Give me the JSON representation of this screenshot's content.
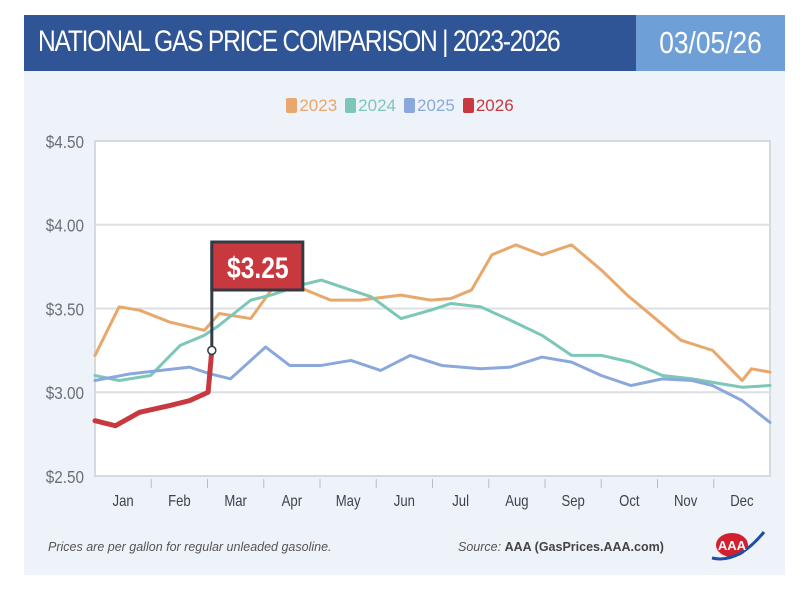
{
  "header": {
    "title": "NATIONAL GAS PRICE COMPARISON | 2023-2026",
    "date": "03/05/26",
    "colors": {
      "bar": "#2f5597",
      "date_box": "#6e9fd6"
    }
  },
  "footer": {
    "note": "Prices are per gallon for regular unleaded gasoline.",
    "source_label": "Source:",
    "source_value": "AAA (GasPrices.AAA.com)",
    "logo_text": "AAA"
  },
  "chart_data": {
    "type": "line",
    "title": "NATIONAL GAS PRICE COMPARISON | 2023-2026",
    "xlabel": "",
    "ylabel": "",
    "ylim": [
      2.5,
      4.5
    ],
    "yticks": [
      "$2.50",
      "$3.00",
      "$3.50",
      "$4.00",
      "$4.50"
    ],
    "ytick_values": [
      2.5,
      3.0,
      3.5,
      4.0,
      4.5
    ],
    "xticks": [
      "Jan",
      "Feb",
      "Mar",
      "Apr",
      "May",
      "Jun",
      "Jul",
      "Aug",
      "Sep",
      "Oct",
      "Nov",
      "Dec"
    ],
    "grid": true,
    "legend": "top-center",
    "annotation": {
      "text": "$3.25",
      "x": "03-05",
      "y": 3.25,
      "color": "#c8393f"
    },
    "series": [
      {
        "name": "2023",
        "color": "#e8a86c",
        "points": [
          [
            "01-01",
            3.22
          ],
          [
            "01-14",
            3.51
          ],
          [
            "01-25",
            3.49
          ],
          [
            "02-10",
            3.42
          ],
          [
            "03-01",
            3.37
          ],
          [
            "03-09",
            3.47
          ],
          [
            "03-26",
            3.44
          ],
          [
            "04-06",
            3.61
          ],
          [
            "04-16",
            3.65
          ],
          [
            "05-08",
            3.55
          ],
          [
            "05-24",
            3.55
          ],
          [
            "06-15",
            3.58
          ],
          [
            "07-01",
            3.55
          ],
          [
            "07-12",
            3.56
          ],
          [
            "07-23",
            3.61
          ],
          [
            "08-03",
            3.82
          ],
          [
            "08-16",
            3.88
          ],
          [
            "08-30",
            3.82
          ],
          [
            "09-15",
            3.88
          ],
          [
            "10-01",
            3.73
          ],
          [
            "10-15",
            3.58
          ],
          [
            "10-28",
            3.46
          ],
          [
            "11-13",
            3.31
          ],
          [
            "11-30",
            3.25
          ],
          [
            "12-16",
            3.07
          ],
          [
            "12-21",
            3.14
          ],
          [
            "12-31",
            3.12
          ]
        ]
      },
      {
        "name": "2024",
        "color": "#7cc7b8",
        "points": [
          [
            "01-01",
            3.1
          ],
          [
            "01-14",
            3.07
          ],
          [
            "01-31",
            3.1
          ],
          [
            "02-16",
            3.28
          ],
          [
            "03-01",
            3.34
          ],
          [
            "03-09",
            3.4
          ],
          [
            "03-26",
            3.55
          ],
          [
            "04-06",
            3.58
          ],
          [
            "04-22",
            3.64
          ],
          [
            "05-03",
            3.67
          ],
          [
            "05-19",
            3.61
          ],
          [
            "05-30",
            3.57
          ],
          [
            "06-15",
            3.44
          ],
          [
            "07-01",
            3.49
          ],
          [
            "07-12",
            3.53
          ],
          [
            "07-28",
            3.51
          ],
          [
            "08-13",
            3.43
          ],
          [
            "08-30",
            3.34
          ],
          [
            "09-15",
            3.22
          ],
          [
            "10-01",
            3.22
          ],
          [
            "10-17",
            3.18
          ],
          [
            "11-03",
            3.1
          ],
          [
            "11-19",
            3.08
          ],
          [
            "12-05",
            3.05
          ],
          [
            "12-16",
            3.03
          ],
          [
            "12-31",
            3.04
          ]
        ]
      },
      {
        "name": "2025",
        "color": "#8aa8dc",
        "points": [
          [
            "01-01",
            3.07
          ],
          [
            "01-20",
            3.11
          ],
          [
            "02-05",
            3.13
          ],
          [
            "02-21",
            3.15
          ],
          [
            "03-04",
            3.11
          ],
          [
            "03-15",
            3.08
          ],
          [
            "04-03",
            3.27
          ],
          [
            "04-16",
            3.16
          ],
          [
            "05-03",
            3.16
          ],
          [
            "05-19",
            3.19
          ],
          [
            "06-04",
            3.13
          ],
          [
            "06-20",
            3.22
          ],
          [
            "07-07",
            3.16
          ],
          [
            "07-28",
            3.14
          ],
          [
            "08-13",
            3.15
          ],
          [
            "08-30",
            3.21
          ],
          [
            "09-15",
            3.18
          ],
          [
            "10-01",
            3.1
          ],
          [
            "10-17",
            3.04
          ],
          [
            "11-03",
            3.08
          ],
          [
            "11-19",
            3.07
          ],
          [
            "11-30",
            3.04
          ],
          [
            "12-16",
            2.95
          ],
          [
            "12-31",
            2.82
          ]
        ]
      },
      {
        "name": "2026",
        "color": "#c8393f",
        "points": [
          [
            "01-01",
            2.83
          ],
          [
            "01-12",
            2.8
          ],
          [
            "01-25",
            2.88
          ],
          [
            "02-10",
            2.92
          ],
          [
            "02-21",
            2.95
          ],
          [
            "02-27",
            2.98
          ],
          [
            "03-03",
            3.0
          ],
          [
            "03-05",
            3.25
          ]
        ]
      }
    ]
  }
}
